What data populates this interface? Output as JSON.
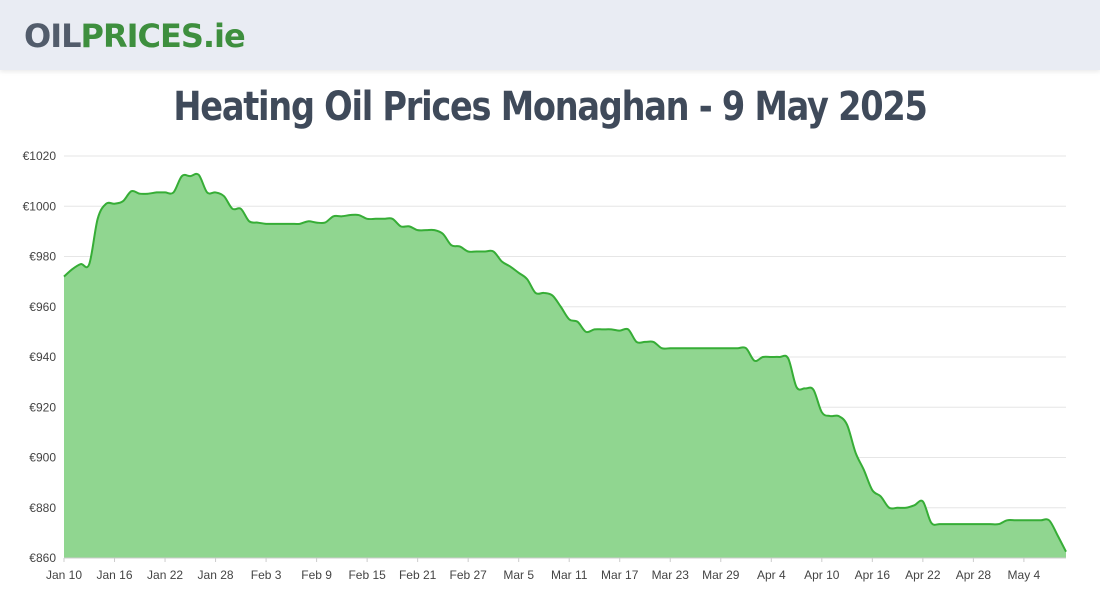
{
  "logo": {
    "part1": "OIL",
    "part2": "PRICES",
    "part3": ".ie"
  },
  "page_title": "Heating Oil Prices Monaghan - 9 May 2025",
  "colors": {
    "fill": "#90d690",
    "line": "#36ad36",
    "grid": "#e6e6e6",
    "title": "#3f4a5a"
  },
  "chart_data": {
    "type": "area",
    "title": "Heating Oil Prices Monaghan - 9 May 2025",
    "xlabel": "",
    "ylabel": "",
    "ylim": [
      860,
      1020
    ],
    "grid": true,
    "y_ticks": [
      "€860",
      "€880",
      "€900",
      "€920",
      "€940",
      "€960",
      "€980",
      "€1000",
      "€1020"
    ],
    "x_ticks": [
      "Jan 10",
      "Jan 16",
      "Jan 22",
      "Jan 28",
      "Feb 3",
      "Feb 9",
      "Feb 15",
      "Feb 21",
      "Feb 27",
      "Mar 5",
      "Mar 11",
      "Mar 17",
      "Mar 23",
      "Mar 29",
      "Apr 4",
      "Apr 10",
      "Apr 16",
      "Apr 22",
      "Apr 28",
      "May 4"
    ],
    "series": [
      {
        "x": [
          "2025-01-10",
          "2025-01-11",
          "2025-01-12",
          "2025-01-13",
          "2025-01-14",
          "2025-01-15",
          "2025-01-16",
          "2025-01-17",
          "2025-01-18",
          "2025-01-19",
          "2025-01-20",
          "2025-01-21",
          "2025-01-22",
          "2025-01-23",
          "2025-01-24",
          "2025-01-25",
          "2025-01-26",
          "2025-01-27",
          "2025-01-28",
          "2025-01-29",
          "2025-01-30",
          "2025-01-31",
          "2025-02-01",
          "2025-02-02",
          "2025-02-03",
          "2025-02-04",
          "2025-02-05",
          "2025-02-06",
          "2025-02-07",
          "2025-02-08",
          "2025-02-09",
          "2025-02-10",
          "2025-02-11",
          "2025-02-12",
          "2025-02-13",
          "2025-02-14",
          "2025-02-15",
          "2025-02-16",
          "2025-02-17",
          "2025-02-18",
          "2025-02-19",
          "2025-02-20",
          "2025-02-21",
          "2025-02-22",
          "2025-02-23",
          "2025-02-24",
          "2025-02-25",
          "2025-02-26",
          "2025-02-27",
          "2025-02-28",
          "2025-03-01",
          "2025-03-02",
          "2025-03-03",
          "2025-03-04",
          "2025-03-05",
          "2025-03-06",
          "2025-03-07",
          "2025-03-08",
          "2025-03-09",
          "2025-03-10",
          "2025-03-11",
          "2025-03-12",
          "2025-03-13",
          "2025-03-14",
          "2025-03-15",
          "2025-03-16",
          "2025-03-17",
          "2025-03-18",
          "2025-03-19",
          "2025-03-20",
          "2025-03-21",
          "2025-03-22",
          "2025-03-23",
          "2025-03-24",
          "2025-03-25",
          "2025-03-26",
          "2025-03-27",
          "2025-03-28",
          "2025-03-29",
          "2025-03-30",
          "2025-03-31",
          "2025-04-01",
          "2025-04-02",
          "2025-04-03",
          "2025-04-04",
          "2025-04-05",
          "2025-04-06",
          "2025-04-07",
          "2025-04-08",
          "2025-04-09",
          "2025-04-10",
          "2025-04-11",
          "2025-04-12",
          "2025-04-13",
          "2025-04-14",
          "2025-04-15",
          "2025-04-16",
          "2025-04-17",
          "2025-04-18",
          "2025-04-19",
          "2025-04-20",
          "2025-04-21",
          "2025-04-22",
          "2025-04-23",
          "2025-04-24",
          "2025-04-25",
          "2025-04-26",
          "2025-04-27",
          "2025-04-28",
          "2025-04-29",
          "2025-04-30",
          "2025-05-01",
          "2025-05-02",
          "2025-05-03",
          "2025-05-04",
          "2025-05-05",
          "2025-05-06",
          "2025-05-07",
          "2025-05-08",
          "2025-05-09"
        ],
        "values": [
          972,
          975,
          977,
          977,
          995,
          1001,
          1001,
          1002,
          1006,
          1005,
          1005,
          1005.5,
          1005.5,
          1005.5,
          1012,
          1012,
          1012.5,
          1005.5,
          1005.5,
          1004,
          999,
          999,
          994,
          993.5,
          993,
          993,
          993,
          993,
          993,
          994,
          993.5,
          993.5,
          996,
          996,
          996.5,
          996.5,
          995,
          995,
          995,
          995,
          992,
          992,
          990.5,
          990.5,
          990.5,
          989,
          984.5,
          984,
          982,
          982,
          982,
          982,
          978,
          976,
          973.5,
          971,
          965.5,
          965.5,
          964.5,
          960,
          955,
          954,
          950,
          951,
          951,
          951,
          950.5,
          951,
          946,
          946,
          946,
          943.5,
          943.5,
          943.5,
          943.5,
          943.5,
          943.5,
          943.5,
          943.5,
          943.5,
          943.5,
          943.5,
          938.5,
          940,
          940,
          940,
          939.5,
          928,
          927.5,
          927,
          918,
          916.5,
          916.5,
          913,
          902,
          895,
          887,
          884.5,
          880,
          880,
          880,
          881,
          882.5,
          874,
          873.5,
          873.5,
          873.5,
          873.5,
          873.5,
          873.5,
          873.5,
          873.5,
          875,
          875,
          875,
          875,
          875,
          875,
          869,
          862.5
        ]
      }
    ]
  }
}
